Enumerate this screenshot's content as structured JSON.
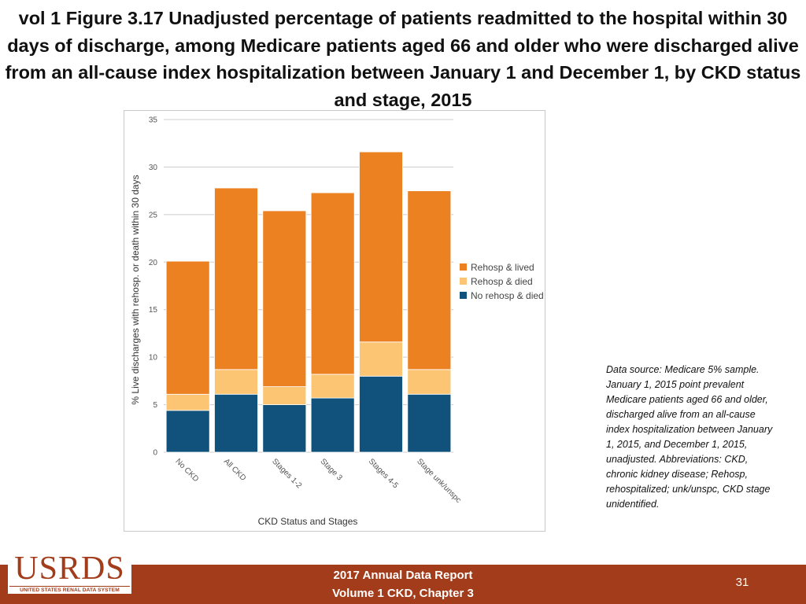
{
  "slide": {
    "title": "vol 1 Figure 3.17 Unadjusted percentage of patients readmitted to the hospital within 30 days of discharge, among Medicare patients aged 66 and older who were discharged alive from an all-cause index hospitalization between January 1 and December 1, by CKD status and stage, 2015",
    "data_source": "Data source: Medicare 5% sample. January 1, 2015 point prevalent Medicare patients aged 66 and older, discharged alive from an all-cause index hospitalization between January 1, 2015, and December 1, 2015, unadjusted. Abbreviations: CKD, chronic kidney disease; Rehosp, rehospitalized; unk/unspc, CKD stage unidentified.",
    "footer_line1": "2017 Annual Data Report",
    "footer_line2": "Volume 1 CKD, Chapter 3",
    "page_number": "31",
    "logo_text": "USRDS",
    "logo_subtext": "UNITED STATES RENAL DATA SYSTEM"
  },
  "colors": {
    "rehosp_lived": "#ec8122",
    "rehosp_died": "#fbc574",
    "no_rehosp_died": "#10527c",
    "footer": "#a23c1a",
    "gridline": "#cccccc"
  },
  "chart_data": {
    "type": "bar",
    "stacked": true,
    "title": "",
    "xlabel": "CKD Status and Stages",
    "ylabel": "% Live discharges with rehosp. or death within 30 days",
    "ylim": [
      0,
      35
    ],
    "yticks": [
      0,
      5,
      10,
      15,
      20,
      25,
      30,
      35
    ],
    "grid": true,
    "legend_position": "right",
    "categories": [
      "No CKD",
      "All CKD",
      "Stages 1-2",
      "Stage 3",
      "Stages 4-5",
      "Stage unk/unspc"
    ],
    "series": [
      {
        "name": "No rehosp & died",
        "values": [
          4.4,
          6.1,
          5.0,
          5.7,
          8.0,
          6.1
        ]
      },
      {
        "name": "Rehosp & died",
        "values": [
          1.7,
          2.6,
          1.9,
          2.5,
          3.6,
          2.6
        ]
      },
      {
        "name": "Rehosp & lived",
        "values": [
          14.0,
          19.1,
          18.5,
          19.1,
          20.0,
          18.8
        ]
      }
    ],
    "legend_order": [
      "Rehosp & lived",
      "Rehosp & died",
      "No rehosp & died"
    ]
  }
}
